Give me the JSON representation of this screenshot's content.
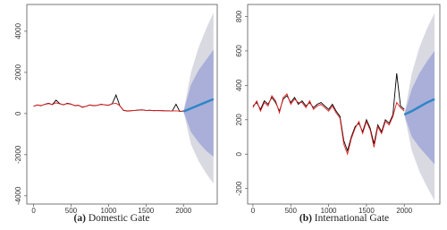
{
  "chart_data": [
    {
      "type": "line",
      "label": "(a)",
      "caption": "Domestic Gate",
      "xlim": [
        -90,
        2450
      ],
      "ylim": [
        -4400,
        5300
      ],
      "xticks": [
        0,
        500,
        1000,
        1500,
        2000
      ],
      "yticks": [
        -4000,
        -2000,
        0,
        2000,
        4000
      ],
      "x": [
        0,
        50,
        100,
        150,
        200,
        250,
        300,
        350,
        400,
        450,
        500,
        550,
        600,
        650,
        700,
        750,
        800,
        850,
        900,
        950,
        1000,
        1050,
        1100,
        1150,
        1200,
        1250,
        1300,
        1350,
        1400,
        1450,
        1500,
        1550,
        1600,
        1650,
        1700,
        1750,
        1800,
        1850,
        1900,
        1950,
        2000
      ],
      "series": [
        {
          "color": "#000000",
          "values": [
            350,
            420,
            380,
            450,
            500,
            430,
            650,
            480,
            420,
            500,
            460,
            380,
            400,
            300,
            350,
            420,
            380,
            400,
            450,
            420,
            400,
            480,
            900,
            380,
            150,
            120,
            130,
            150,
            170,
            180,
            150,
            160,
            140,
            150,
            140,
            130,
            130,
            120,
            450,
            100,
            120
          ]
        },
        {
          "color": "#e41a1c",
          "values": [
            360,
            410,
            390,
            440,
            480,
            440,
            520,
            470,
            430,
            480,
            450,
            390,
            400,
            320,
            350,
            410,
            390,
            400,
            440,
            420,
            410,
            470,
            500,
            380,
            160,
            130,
            140,
            150,
            160,
            170,
            150,
            150,
            140,
            140,
            140,
            130,
            130,
            120,
            130,
            110,
            110
          ]
        }
      ],
      "forecast": {
        "color": "#2e86c8",
        "x": [
          2000,
          2100,
          2200,
          2300,
          2400
        ],
        "values": [
          100,
          250,
          400,
          550,
          700
        ]
      },
      "intervals": [
        {
          "color": "#d9d9e2",
          "lower": [
            100,
            -1500,
            -2300,
            -2900,
            -3400
          ],
          "upper": [
            100,
            2000,
            3200,
            4100,
            4900
          ]
        },
        {
          "color": "#a9afd8",
          "lower": [
            100,
            -900,
            -1400,
            -1800,
            -2100
          ],
          "upper": [
            100,
            1400,
            2100,
            2600,
            3100
          ]
        }
      ]
    },
    {
      "type": "line",
      "label": "(b)",
      "caption": "International Gate",
      "xlim": [
        -70,
        2470
      ],
      "ylim": [
        -290,
        870
      ],
      "xticks": [
        0,
        500,
        1000,
        1500,
        2000
      ],
      "yticks": [
        -200,
        0,
        200,
        400,
        600,
        800
      ],
      "x": [
        0,
        50,
        100,
        150,
        200,
        250,
        300,
        350,
        400,
        450,
        500,
        550,
        600,
        650,
        700,
        750,
        800,
        850,
        900,
        950,
        1000,
        1050,
        1100,
        1150,
        1200,
        1250,
        1300,
        1350,
        1400,
        1450,
        1500,
        1550,
        1600,
        1650,
        1700,
        1750,
        1800,
        1850,
        1900,
        1950,
        2000
      ],
      "series": [
        {
          "color": "#000000",
          "values": [
            280,
            300,
            260,
            310,
            290,
            330,
            300,
            250,
            320,
            340,
            300,
            330,
            290,
            310,
            280,
            300,
            270,
            290,
            300,
            280,
            260,
            290,
            250,
            220,
            80,
            20,
            100,
            160,
            180,
            130,
            200,
            150,
            60,
            170,
            130,
            200,
            180,
            230,
            470,
            280,
            260
          ]
        },
        {
          "color": "#e41a1c",
          "values": [
            270,
            310,
            250,
            300,
            280,
            340,
            310,
            240,
            330,
            350,
            290,
            320,
            300,
            300,
            270,
            310,
            260,
            280,
            290,
            270,
            250,
            280,
            240,
            210,
            60,
            0,
            90,
            150,
            190,
            120,
            190,
            140,
            40,
            160,
            120,
            190,
            170,
            220,
            300,
            270,
            250
          ]
        }
      ],
      "forecast": {
        "color": "#2e86c8",
        "x": [
          2000,
          2100,
          2200,
          2300,
          2400
        ],
        "values": [
          230,
          250,
          275,
          300,
          320
        ]
      },
      "intervals": [
        {
          "color": "#d9d9e2",
          "lower": [
            230,
            20,
            -100,
            -190,
            -270
          ],
          "upper": [
            230,
            470,
            620,
            730,
            820
          ]
        },
        {
          "color": "#a9afd8",
          "lower": [
            230,
            100,
            40,
            -10,
            -60
          ],
          "upper": [
            230,
            380,
            470,
            540,
            600
          ]
        }
      ]
    }
  ]
}
